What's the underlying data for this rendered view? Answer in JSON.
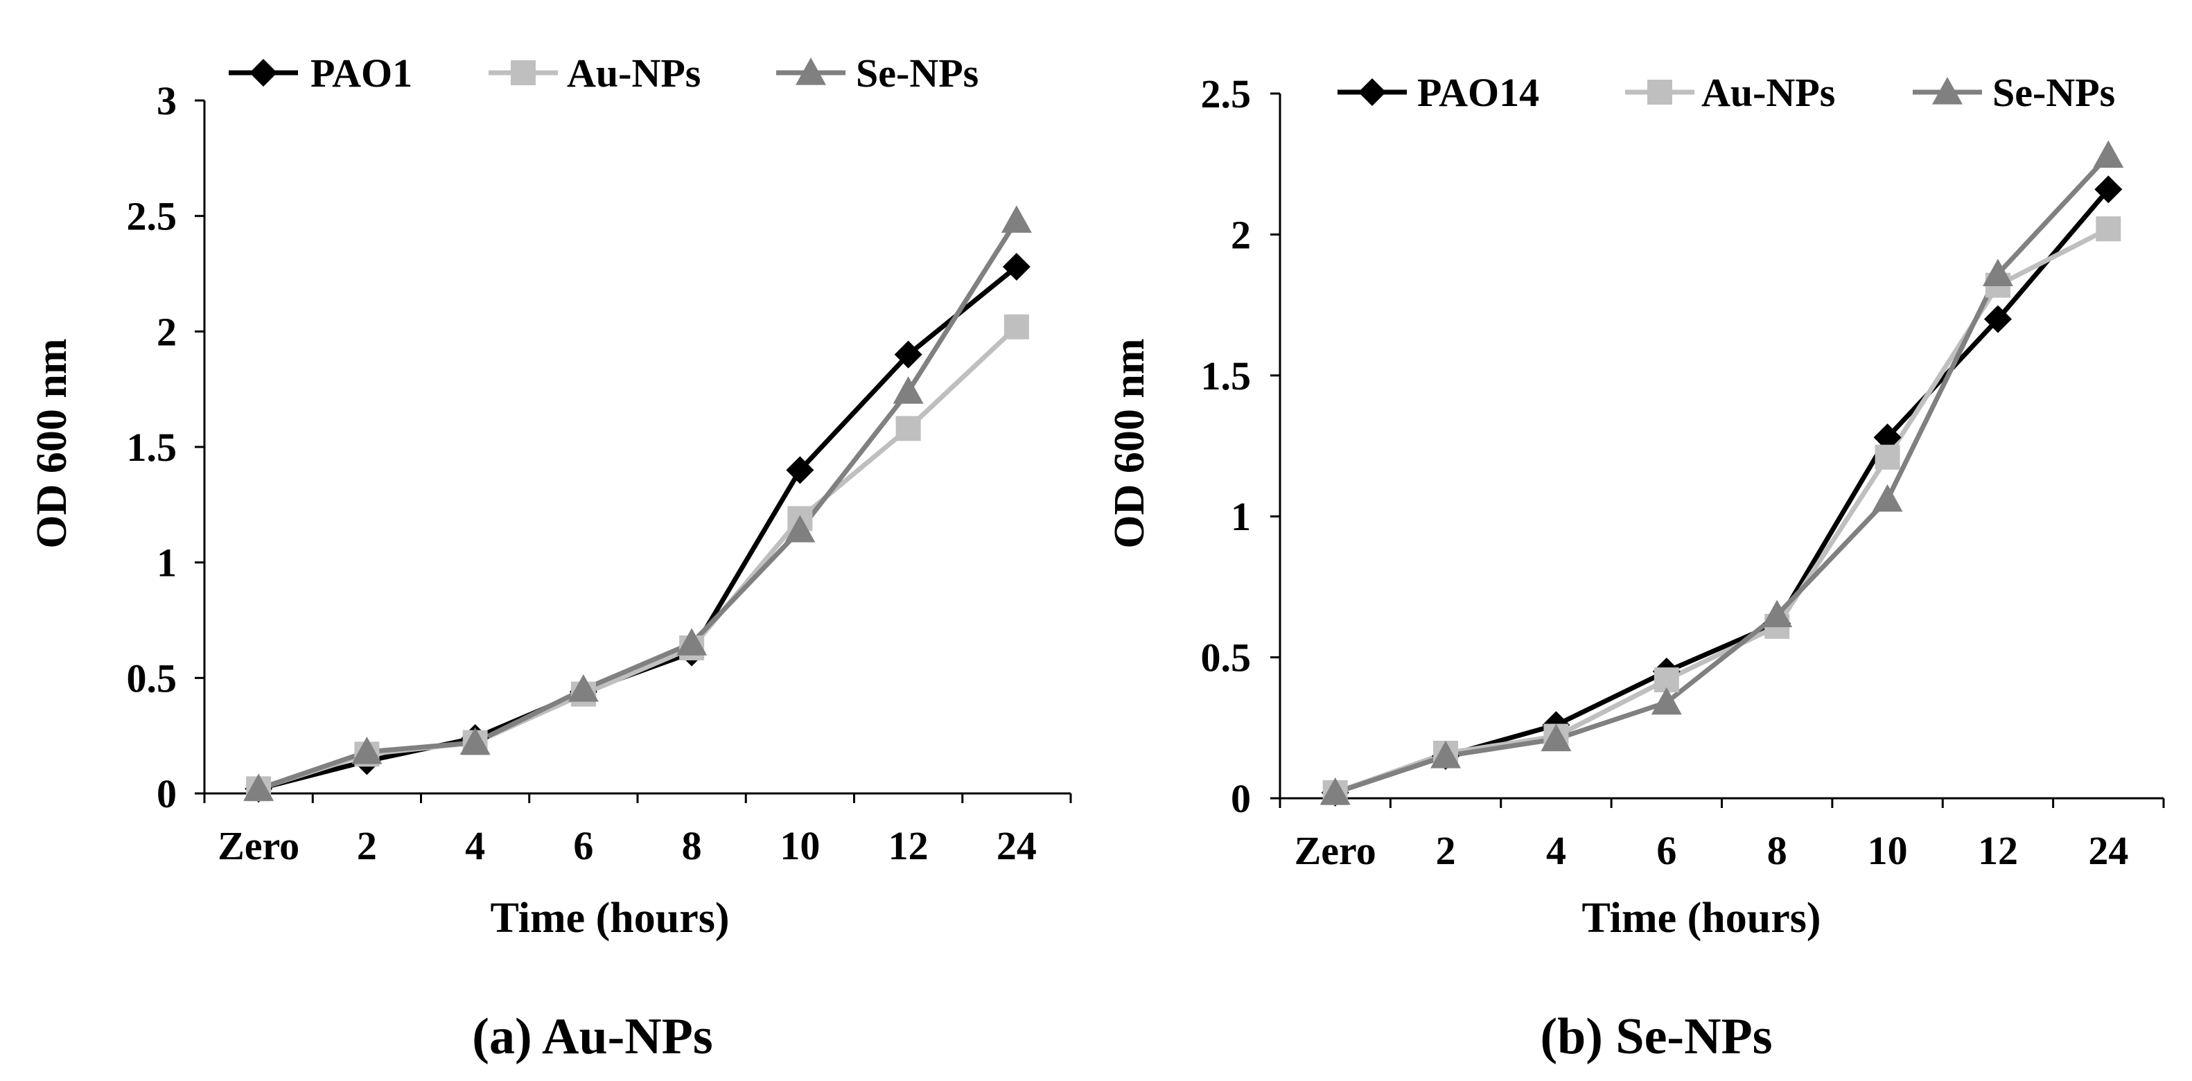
{
  "figure": {
    "colors": {
      "black": "#000000",
      "light_gray": "#bfbfbf",
      "mid_gray": "#808080"
    }
  },
  "chart_data": [
    {
      "type": "line",
      "caption": "(a) Au-NPs",
      "categories": [
        "Zero",
        "2",
        "4",
        "6",
        "8",
        "10",
        "12",
        "24"
      ],
      "xlabel": "Time (hours)",
      "ylabel": "OD 600 nm",
      "ylim": [
        0,
        3
      ],
      "yticks": [
        0,
        0.5,
        1,
        1.5,
        2,
        2.5,
        3
      ],
      "ytick_labels": [
        "0",
        "0.5",
        "1",
        "1.5",
        "2",
        "2.5",
        "3"
      ],
      "grid": false,
      "legend_position": "top",
      "series": [
        {
          "name": "PAO1",
          "marker": "diamond",
          "color": "#000000",
          "values": [
            0.02,
            0.14,
            0.24,
            0.44,
            0.61,
            1.4,
            1.9,
            2.28
          ]
        },
        {
          "name": "Au-NPs",
          "marker": "square",
          "color": "#bfbfbf",
          "values": [
            0.02,
            0.17,
            0.22,
            0.43,
            0.63,
            1.19,
            1.58,
            2.02
          ]
        },
        {
          "name": "Se-NPs",
          "marker": "triangle",
          "color": "#808080",
          "values": [
            0.02,
            0.18,
            0.22,
            0.45,
            0.65,
            1.14,
            1.74,
            2.48
          ]
        }
      ]
    },
    {
      "type": "line",
      "caption": "(b) Se-NPs",
      "categories": [
        "Zero",
        "2",
        "4",
        "6",
        "8",
        "10",
        "12",
        "24"
      ],
      "xlabel": "Time (hours)",
      "ylabel": "OD 600 nm",
      "ylim": [
        0,
        2.5
      ],
      "yticks": [
        0,
        0.5,
        1,
        1.5,
        2,
        2.5
      ],
      "ytick_labels": [
        "0",
        "0.5",
        "1",
        "1.5",
        "2",
        "2.5"
      ],
      "grid": false,
      "legend_position": "top",
      "series": [
        {
          "name": "PAO14",
          "marker": "diamond",
          "color": "#000000",
          "values": [
            0.02,
            0.15,
            0.26,
            0.45,
            0.62,
            1.28,
            1.7,
            2.16
          ]
        },
        {
          "name": "Au-NPs",
          "marker": "square",
          "color": "#bfbfbf",
          "values": [
            0.02,
            0.16,
            0.22,
            0.42,
            0.61,
            1.21,
            1.82,
            2.02
          ]
        },
        {
          "name": "Se-NPs",
          "marker": "triangle",
          "color": "#808080",
          "values": [
            0.02,
            0.15,
            0.21,
            0.34,
            0.65,
            1.06,
            1.86,
            2.28
          ]
        }
      ]
    }
  ]
}
